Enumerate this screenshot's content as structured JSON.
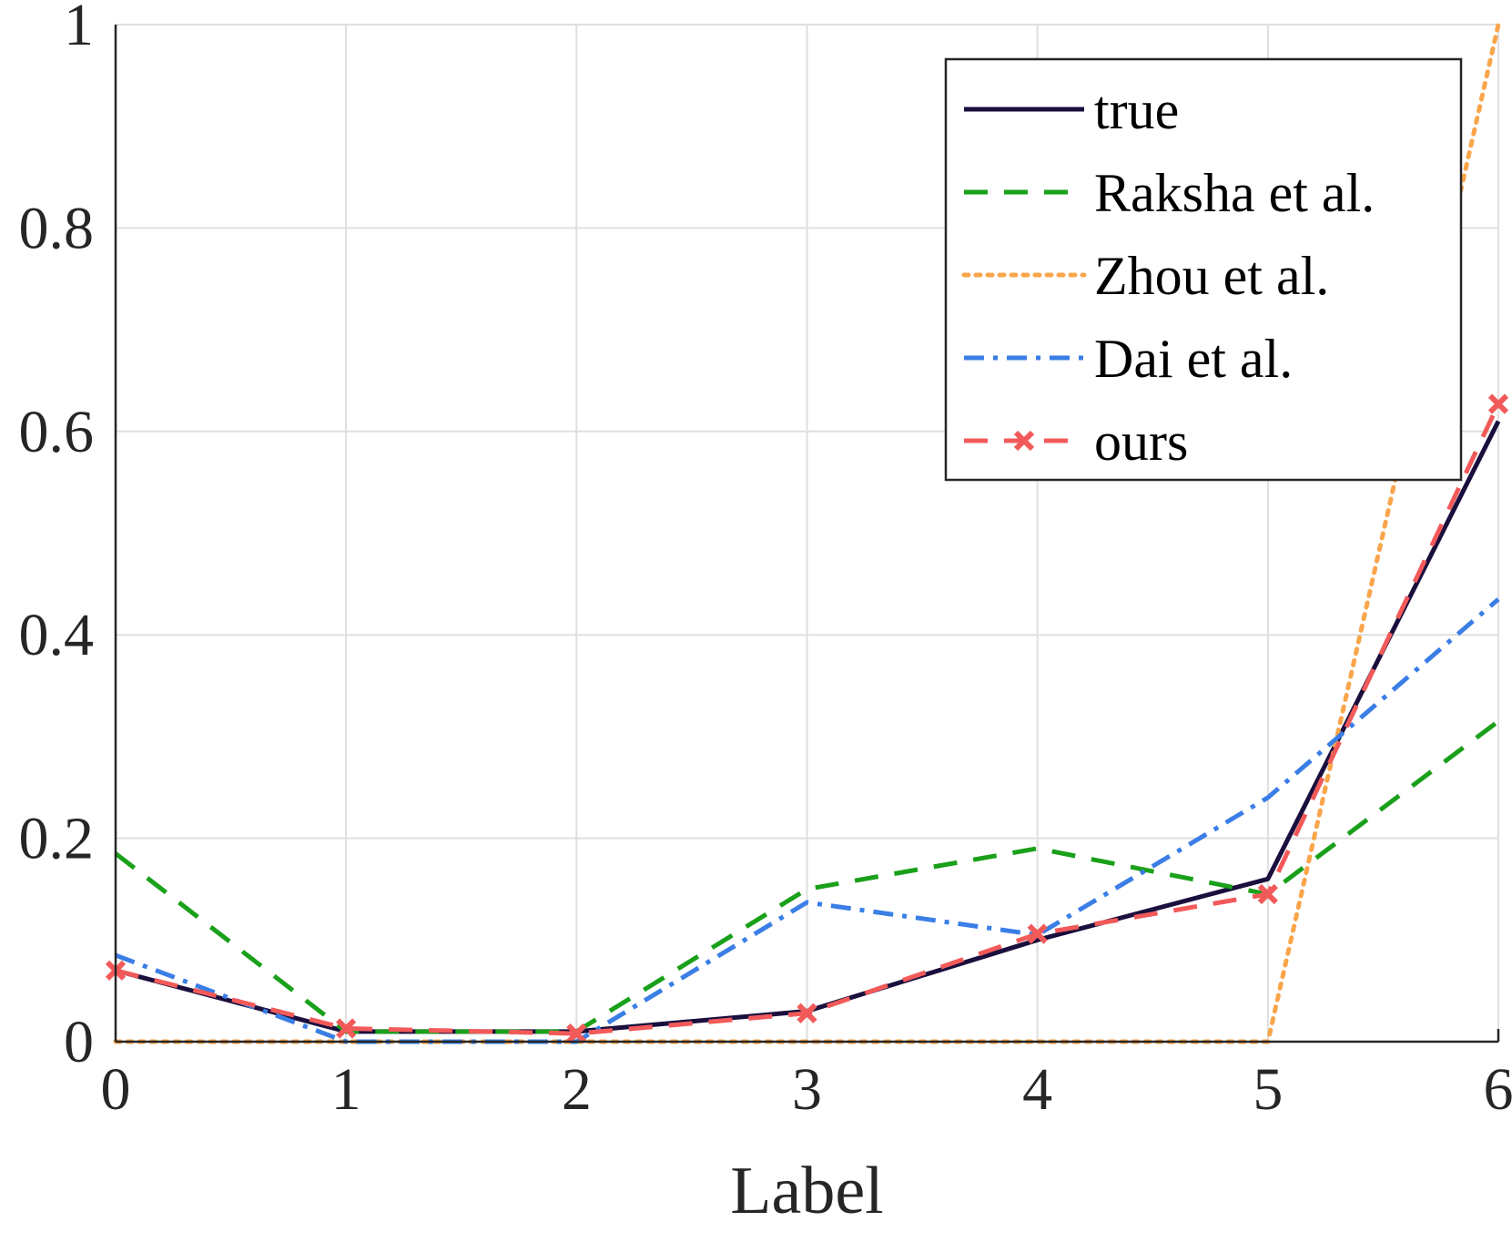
{
  "chart_data": {
    "type": "line",
    "xlabel": "Label",
    "ylabel": "",
    "xlim": [
      0,
      6
    ],
    "ylim": [
      0,
      1
    ],
    "x": [
      0,
      1,
      2,
      3,
      4,
      5,
      6
    ],
    "x_ticks": [
      "0",
      "1",
      "2",
      "3",
      "4",
      "5",
      "6"
    ],
    "y_ticks": [
      "0",
      "0.2",
      "0.4",
      "0.6",
      "0.8",
      "1"
    ],
    "y_tick_values": [
      0,
      0.2,
      0.4,
      0.6,
      0.8,
      1
    ],
    "grid": true,
    "legend_position": "top-right",
    "series": [
      {
        "name": "true",
        "color": "#1a0f3d",
        "style": "solid",
        "marker": "none",
        "values": [
          0.07,
          0.01,
          0.01,
          0.03,
          0.1,
          0.16,
          0.61
        ]
      },
      {
        "name": "Raksha et al.",
        "color": "#1aa01a",
        "style": "dashed",
        "marker": "none",
        "values": [
          0.185,
          0.01,
          0.01,
          0.15,
          0.19,
          0.145,
          0.315
        ]
      },
      {
        "name": "Zhou et al.",
        "color": "#f9a54a",
        "style": "dotted",
        "marker": "none",
        "values": [
          0,
          0,
          0,
          0,
          0,
          0,
          1.0
        ]
      },
      {
        "name": "Dai et al.",
        "color": "#3a7ee6",
        "style": "dashdot",
        "marker": "none",
        "values": [
          0.085,
          0,
          0,
          0.137,
          0.105,
          0.24,
          0.435
        ]
      },
      {
        "name": "ours",
        "color": "#f25a5a",
        "style": "dashed",
        "marker": "x",
        "values": [
          0.07,
          0.013,
          0.008,
          0.028,
          0.106,
          0.145,
          0.627
        ]
      }
    ]
  }
}
